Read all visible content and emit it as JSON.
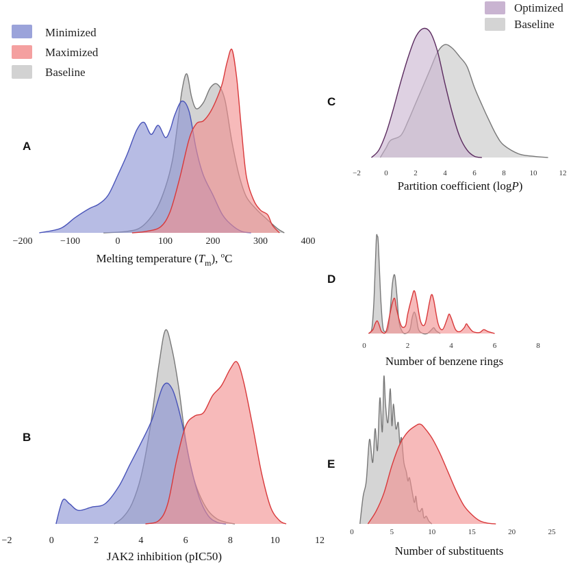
{
  "chart_data": [
    {
      "panel": "A",
      "type": "area",
      "title": "",
      "xlabel": "Melting temperature (Tm), oC",
      "xlabel_parts": {
        "prefix": "Melting temperature (",
        "italic": "T",
        "sub": "m",
        "suffix": "), ",
        "sup": "o",
        "unit": "C"
      },
      "ylabel": "",
      "xlim": [
        -200,
        400
      ],
      "xticks": [
        -200,
        -100,
        0,
        100,
        200,
        300,
        400
      ],
      "xtick_labels": [
        "−200",
        "−100",
        "0",
        "100",
        "200",
        "300",
        "400"
      ],
      "grid": false,
      "legend": {
        "position": "top-left",
        "entries": [
          "Minimized",
          "Maximized",
          "Baseline"
        ]
      },
      "series": [
        {
          "name": "Minimized",
          "color": "#4752b8",
          "fill": "#8a93d4",
          "x": [
            -165,
            -120,
            -90,
            -60,
            -40,
            -20,
            0,
            20,
            40,
            55,
            70,
            85,
            100,
            110,
            120,
            135,
            150,
            165,
            180,
            200,
            220,
            240,
            260,
            280
          ],
          "y": [
            0,
            0.03,
            0.1,
            0.16,
            0.19,
            0.25,
            0.38,
            0.52,
            0.68,
            0.73,
            0.65,
            0.71,
            0.63,
            0.68,
            0.78,
            0.87,
            0.8,
            0.55,
            0.38,
            0.25,
            0.12,
            0.05,
            0.01,
            0
          ]
        },
        {
          "name": "Maximized",
          "color": "#d8383a",
          "fill": "#f28f8f",
          "x": [
            30,
            60,
            90,
            110,
            130,
            150,
            165,
            180,
            195,
            210,
            220,
            230,
            240,
            250,
            260,
            270,
            285,
            300,
            315,
            325,
            340
          ],
          "y": [
            0,
            0.01,
            0.04,
            0.14,
            0.36,
            0.62,
            0.72,
            0.74,
            0.8,
            0.9,
            0.99,
            1.13,
            1.21,
            1.02,
            0.68,
            0.38,
            0.22,
            0.15,
            0.12,
            0.05,
            0
          ]
        },
        {
          "name": "Baseline",
          "color": "#777777",
          "fill": "#c9c9c9",
          "x": [
            -30,
            20,
            50,
            80,
            100,
            115,
            125,
            135,
            145,
            155,
            165,
            180,
            195,
            210,
            225,
            240,
            255,
            270,
            290,
            310,
            335,
            350
          ],
          "y": [
            0,
            0.01,
            0.04,
            0.15,
            0.3,
            0.48,
            0.7,
            0.94,
            1.05,
            0.9,
            0.82,
            0.86,
            0.96,
            0.98,
            0.88,
            0.6,
            0.38,
            0.24,
            0.16,
            0.1,
            0.03,
            0
          ]
        }
      ]
    },
    {
      "panel": "B",
      "type": "area",
      "xlabel": "JAK2 inhibition (pIC50)",
      "ylabel": "",
      "xlim": [
        -2,
        12
      ],
      "xticks": [
        -2,
        0,
        2,
        4,
        6,
        8,
        10,
        12
      ],
      "xtick_labels": [
        "−2",
        "0",
        "2",
        "4",
        "6",
        "8",
        "10",
        "12"
      ],
      "grid": false,
      "series": [
        {
          "name": "Minimized",
          "color": "#4752b8",
          "fill": "#8a93d4",
          "x": [
            0.2,
            0.5,
            0.8,
            1.2,
            1.8,
            2.4,
            3.0,
            3.5,
            4.0,
            4.5,
            5.0,
            5.4,
            5.8,
            6.2,
            6.6,
            7.0,
            7.4,
            7.8
          ],
          "y": [
            0,
            0.14,
            0.12,
            0.08,
            0.1,
            0.12,
            0.22,
            0.35,
            0.48,
            0.62,
            0.82,
            0.8,
            0.62,
            0.36,
            0.16,
            0.05,
            0.01,
            0
          ]
        },
        {
          "name": "Maximized",
          "color": "#d8383a",
          "fill": "#f28f8f",
          "x": [
            4.2,
            4.8,
            5.2,
            5.6,
            6.0,
            6.4,
            6.8,
            7.2,
            7.6,
            8.0,
            8.3,
            8.6,
            9.0,
            9.4,
            9.8,
            10.2,
            10.5
          ],
          "y": [
            0,
            0.02,
            0.12,
            0.38,
            0.58,
            0.64,
            0.66,
            0.76,
            0.82,
            0.92,
            0.96,
            0.84,
            0.58,
            0.3,
            0.1,
            0.02,
            0
          ]
        },
        {
          "name": "Baseline",
          "color": "#777777",
          "fill": "#c9c9c9",
          "x": [
            2.8,
            3.2,
            3.6,
            4.0,
            4.4,
            4.8,
            5.1,
            5.4,
            5.7,
            6.0,
            6.3,
            6.6,
            7.0,
            7.4,
            7.8,
            8.2
          ],
          "y": [
            0,
            0.04,
            0.12,
            0.28,
            0.56,
            0.94,
            1.15,
            1.03,
            0.8,
            0.5,
            0.3,
            0.18,
            0.08,
            0.03,
            0.01,
            0
          ]
        }
      ]
    },
    {
      "panel": "C",
      "type": "area",
      "xlabel": "Partition coefficient (logP)",
      "xlabel_parts": {
        "prefix": "Partition coefficient (log",
        "italic": "P",
        "suffix": ")"
      },
      "ylabel": "",
      "xlim": [
        -2,
        12
      ],
      "xticks": [
        -2,
        0,
        2,
        4,
        6,
        8,
        10,
        12
      ],
      "xtick_labels": [
        "−2",
        "0",
        "2",
        "4",
        "6",
        "8",
        "10",
        "12"
      ],
      "grid": false,
      "legend": {
        "position": "top-right",
        "entries": [
          "Optimized",
          "Baseline"
        ]
      },
      "series": [
        {
          "name": "Optimized",
          "color": "#5a2a5e",
          "fill": "#c9b4d1",
          "x": [
            -1.0,
            -0.5,
            0,
            0.5,
            1.0,
            1.5,
            2.0,
            2.5,
            3.0,
            3.5,
            4.0,
            4.5,
            5.0,
            5.5,
            6.0,
            6.5
          ],
          "y": [
            0,
            0.06,
            0.2,
            0.4,
            0.62,
            0.82,
            0.98,
            1.05,
            1.02,
            0.86,
            0.6,
            0.36,
            0.17,
            0.06,
            0.01,
            0
          ]
        },
        {
          "name": "Baseline",
          "color": "#777777",
          "fill": "#d4d4d4",
          "x": [
            -0.4,
            0,
            0.3,
            1.0,
            1.5,
            2.0,
            2.5,
            3.0,
            3.5,
            4.0,
            4.5,
            5.0,
            5.5,
            6.0,
            6.5,
            7.0,
            7.5,
            8.0,
            9.0,
            10.0,
            11.0
          ],
          "y": [
            0,
            0.08,
            0.14,
            0.18,
            0.3,
            0.44,
            0.58,
            0.72,
            0.86,
            0.92,
            0.89,
            0.82,
            0.74,
            0.57,
            0.43,
            0.3,
            0.18,
            0.1,
            0.03,
            0.01,
            0
          ]
        }
      ]
    },
    {
      "panel": "D",
      "type": "area",
      "xlabel": "Number of benzene rings",
      "ylabel": "",
      "xlim": [
        0,
        8
      ],
      "xticks": [
        0,
        2,
        4,
        6,
        8
      ],
      "xtick_labels": [
        "0",
        "2",
        "4",
        "6",
        "8"
      ],
      "grid": false,
      "series": [
        {
          "name": "Baseline",
          "color": "#777777",
          "fill": "#cccccc",
          "x": [
            0.2,
            0.35,
            0.45,
            0.55,
            0.6,
            0.65,
            0.75,
            0.85,
            0.95,
            1.1,
            1.2,
            1.3,
            1.4,
            1.5,
            1.6,
            1.75,
            1.9,
            2.1,
            2.2,
            2.3,
            2.4,
            2.5,
            2.7,
            2.9,
            3.1,
            3.2,
            3.3,
            3.5
          ],
          "y": [
            0,
            0.05,
            0.35,
            0.95,
            1.0,
            0.92,
            0.4,
            0.08,
            0.02,
            0.05,
            0.25,
            0.52,
            0.6,
            0.4,
            0.12,
            0.02,
            0.0,
            0.04,
            0.16,
            0.22,
            0.16,
            0.04,
            0.0,
            0.0,
            0.04,
            0.06,
            0.03,
            0
          ]
        },
        {
          "name": "Maximized",
          "color": "#d8383a",
          "fill": "#f28f8f",
          "x": [
            0.2,
            0.4,
            0.5,
            0.6,
            0.7,
            0.8,
            1.0,
            1.2,
            1.3,
            1.4,
            1.5,
            1.7,
            1.9,
            2.0,
            2.2,
            2.3,
            2.4,
            2.6,
            2.8,
            3.0,
            3.1,
            3.2,
            3.4,
            3.6,
            3.8,
            3.9,
            4.0,
            4.2,
            4.4,
            4.6,
            4.7,
            4.8,
            5.0,
            5.3,
            5.5,
            5.7,
            6.0
          ],
          "y": [
            0,
            0.04,
            0.1,
            0.13,
            0.08,
            0.02,
            0.02,
            0.22,
            0.32,
            0.36,
            0.24,
            0.08,
            0.08,
            0.2,
            0.38,
            0.44,
            0.36,
            0.12,
            0.1,
            0.32,
            0.4,
            0.34,
            0.1,
            0.04,
            0.14,
            0.2,
            0.16,
            0.04,
            0.02,
            0.06,
            0.1,
            0.07,
            0.02,
            0.01,
            0.04,
            0.02,
            0
          ]
        }
      ]
    },
    {
      "panel": "E",
      "type": "area",
      "xlabel": "Number of substituents",
      "ylabel": "",
      "xlim": [
        0,
        25
      ],
      "xticks": [
        0,
        5,
        10,
        15,
        20,
        25
      ],
      "xtick_labels": [
        "0",
        "5",
        "10",
        "15",
        "20",
        "25"
      ],
      "grid": false,
      "series": [
        {
          "name": "Baseline",
          "color": "#777777",
          "fill": "#cccccc",
          "x": [
            1.0,
            1.4,
            1.8,
            2.2,
            2.6,
            2.9,
            3.2,
            3.5,
            3.8,
            4.0,
            4.2,
            4.5,
            4.8,
            5.0,
            5.2,
            5.5,
            5.8,
            6.0,
            6.2,
            6.5,
            6.8,
            7.0,
            7.2,
            7.5,
            7.8,
            8.0,
            8.2,
            8.5,
            8.8,
            9.0,
            9.3,
            9.6,
            10.0
          ],
          "y": [
            0,
            0.18,
            0.28,
            0.55,
            0.4,
            0.62,
            0.48,
            0.82,
            0.6,
            0.96,
            0.78,
            0.66,
            0.88,
            0.64,
            0.78,
            0.62,
            0.66,
            0.52,
            0.56,
            0.4,
            0.34,
            0.28,
            0.3,
            0.22,
            0.14,
            0.18,
            0.1,
            0.08,
            0.1,
            0.04,
            0.05,
            0.02,
            0
          ]
        },
        {
          "name": "Maximized",
          "color": "#d8383a",
          "fill": "#f28f8f",
          "x": [
            2.0,
            3.0,
            4.0,
            5.0,
            6.0,
            7.0,
            8.0,
            8.5,
            9.0,
            10.0,
            11.0,
            12.0,
            13.0,
            14.0,
            15.0,
            16.0,
            17.0,
            18.0
          ],
          "y": [
            0,
            0.08,
            0.2,
            0.38,
            0.52,
            0.6,
            0.64,
            0.65,
            0.63,
            0.56,
            0.46,
            0.34,
            0.22,
            0.12,
            0.06,
            0.02,
            0.005,
            0
          ]
        }
      ]
    }
  ]
}
